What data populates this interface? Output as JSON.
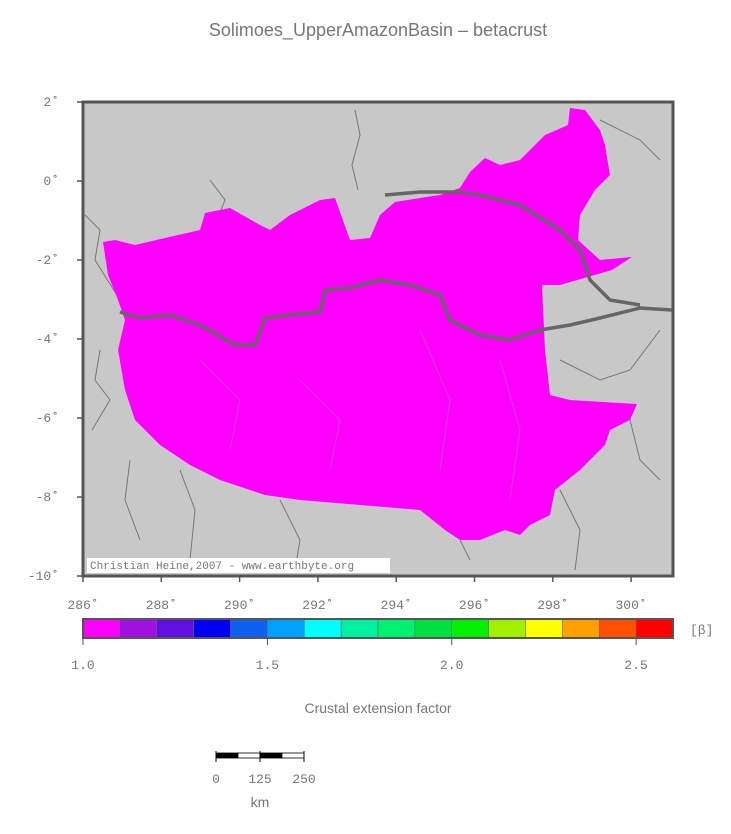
{
  "title": "Solimoes_UpperAmazonBasin – betacrust",
  "map": {
    "xlim": [
      286,
      301.07
    ],
    "ylim": [
      -10,
      2
    ],
    "xticks": [
      {
        "value": 286,
        "label": "286˚"
      },
      {
        "value": 288,
        "label": "288˚"
      },
      {
        "value": 290,
        "label": "290˚"
      },
      {
        "value": 292,
        "label": "292˚"
      },
      {
        "value": 294,
        "label": "294˚"
      },
      {
        "value": 296,
        "label": "296˚"
      },
      {
        "value": 298,
        "label": "298˚"
      },
      {
        "value": 300,
        "label": "300˚"
      }
    ],
    "yticks": [
      {
        "value": 2,
        "label": "2˚"
      },
      {
        "value": 0,
        "label": "0˚"
      },
      {
        "value": -2,
        "label": "-2˚"
      },
      {
        "value": -4,
        "label": "-4˚"
      },
      {
        "value": -6,
        "label": "-6˚"
      },
      {
        "value": -8,
        "label": "-8˚"
      },
      {
        "value": -10,
        "label": "-10˚"
      }
    ],
    "credit": "Christian Heine,2007 - www.earthbyte.org"
  },
  "colorbar": {
    "range": [
      1.0,
      2.6
    ],
    "colors": [
      "#ff00ff",
      "#a010e0",
      "#6010e0",
      "#0000f0",
      "#1060f0",
      "#00a0ff",
      "#00ffff",
      "#00f0a0",
      "#00f070",
      "#00e040",
      "#00f000",
      "#a0f000",
      "#ffff00",
      "#ffa000",
      "#ff5000",
      "#ff0000"
    ],
    "ticks": [
      {
        "value": 1.0,
        "label": "1.0"
      },
      {
        "value": 1.5,
        "label": "1.5"
      },
      {
        "value": 2.0,
        "label": "2.0"
      },
      {
        "value": 2.5,
        "label": "2.5"
      }
    ],
    "unit": "[β]",
    "label": "Crustal extension factor"
  },
  "scale_bar": {
    "ticks": [
      0,
      125,
      250
    ],
    "unit": "km"
  }
}
